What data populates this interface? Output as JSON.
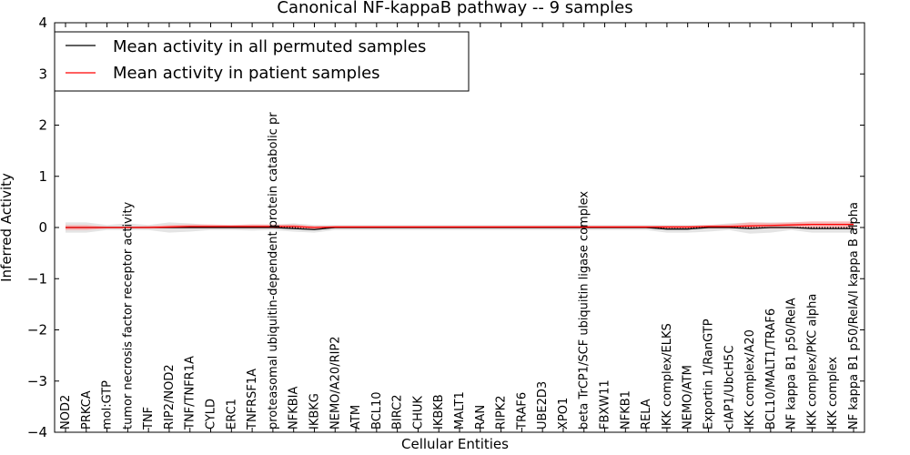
{
  "chart_data": {
    "type": "line",
    "title": "Canonical NF-kappaB pathway -- 9 samples",
    "xlabel": "Cellular Entities",
    "ylabel": "Inferred Activity",
    "ylim": [
      -4,
      4
    ],
    "yticks": [
      "−4",
      "−3",
      "−2",
      "−1",
      "0",
      "1",
      "2",
      "3",
      "4"
    ],
    "ytick_values": [
      -4,
      -3,
      -2,
      -1,
      0,
      1,
      2,
      3,
      4
    ],
    "grid": false,
    "legend_position": "top-left",
    "categories": [
      "NOD2",
      "PRKCA",
      "mol:GTP",
      "tumor necrosis factor receptor activity",
      "TNF",
      "RIP2/NOD2",
      "TNF/TNFR1A",
      "CYLD",
      "ERC1",
      "TNFRSF1A",
      "proteasomal ubiquitin-dependent protein catabolic pr",
      "NFKBIA",
      "IKBKG",
      "NEMO/A20/RIP2",
      "ATM",
      "BCL10",
      "BIRC2",
      "CHUK",
      "IKBKB",
      "MALT1",
      "RAN",
      "RIPK2",
      "TRAF6",
      "UBE2D3",
      "XPO1",
      "beta TrCP1/SCF ubiquitin ligase complex",
      "FBXW11",
      "NFKB1",
      "RELA",
      "IKK complex/ELKS",
      "NEMO/ATM",
      "Exportin 1/RanGTP",
      "cIAP1/UbcH5C",
      "IKK complex/A20",
      "BCL10/MALT1/TRAF6",
      "NF kappa B1 p50/RelA",
      "IKK complex/PKC alpha",
      "IKK complex",
      "NF kappa B1 p50/RelA/I kappa B alpha"
    ],
    "series": [
      {
        "name": "Mean activity in all permuted samples",
        "color": "#000000",
        "values": [
          0.0,
          0.0,
          0.0,
          0.0,
          0.0,
          0.0,
          0.0,
          0.0,
          0.0,
          0.0,
          0.0,
          -0.02,
          -0.04,
          0.0,
          0.0,
          0.0,
          0.0,
          0.0,
          0.0,
          0.0,
          0.0,
          0.0,
          0.0,
          0.0,
          0.0,
          0.0,
          0.0,
          0.0,
          0.0,
          -0.03,
          -0.03,
          0.0,
          0.0,
          -0.02,
          0.0,
          0.0,
          -0.02,
          -0.02,
          -0.02
        ],
        "band_lower": [
          -0.1,
          -0.1,
          -0.05,
          -0.05,
          -0.05,
          -0.1,
          -0.08,
          -0.05,
          -0.05,
          -0.06,
          -0.05,
          -0.08,
          -0.1,
          -0.05,
          -0.05,
          -0.05,
          -0.05,
          -0.05,
          -0.05,
          -0.05,
          -0.05,
          -0.05,
          -0.05,
          -0.05,
          -0.05,
          -0.05,
          -0.05,
          -0.05,
          -0.05,
          -0.1,
          -0.1,
          -0.08,
          -0.05,
          -0.12,
          -0.1,
          -0.05,
          -0.1,
          -0.1,
          -0.1
        ],
        "band_upper": [
          0.1,
          0.1,
          0.05,
          0.08,
          0.05,
          0.1,
          0.08,
          0.05,
          0.05,
          0.06,
          0.05,
          0.08,
          0.05,
          0.05,
          0.05,
          0.05,
          0.05,
          0.05,
          0.05,
          0.05,
          0.05,
          0.05,
          0.05,
          0.05,
          0.05,
          0.05,
          0.05,
          0.05,
          0.05,
          0.05,
          0.05,
          0.05,
          0.08,
          0.1,
          0.1,
          0.1,
          0.1,
          0.1,
          0.1
        ]
      },
      {
        "name": "Mean activity in patient samples",
        "color": "#ff0000",
        "values": [
          0.0,
          0.0,
          0.0,
          0.0,
          0.0,
          0.01,
          0.02,
          0.02,
          0.02,
          0.02,
          0.02,
          0.02,
          0.0,
          0.01,
          0.01,
          0.01,
          0.01,
          0.01,
          0.01,
          0.01,
          0.01,
          0.01,
          0.01,
          0.01,
          0.01,
          0.01,
          0.01,
          0.01,
          0.01,
          0.01,
          0.01,
          0.02,
          0.02,
          0.03,
          0.04,
          0.05,
          0.06,
          0.06,
          0.06
        ],
        "band_lower": [
          -0.05,
          -0.05,
          -0.02,
          -0.02,
          -0.02,
          -0.02,
          -0.02,
          -0.02,
          -0.02,
          -0.02,
          -0.02,
          -0.02,
          -0.03,
          -0.02,
          -0.02,
          -0.02,
          -0.02,
          -0.02,
          -0.02,
          -0.02,
          -0.02,
          -0.02,
          -0.02,
          -0.02,
          -0.02,
          -0.02,
          -0.02,
          -0.02,
          -0.02,
          -0.02,
          -0.02,
          -0.02,
          -0.02,
          -0.02,
          -0.02,
          -0.02,
          -0.02,
          -0.02,
          -0.02
        ],
        "band_upper": [
          0.05,
          0.05,
          0.02,
          0.02,
          0.03,
          0.05,
          0.06,
          0.06,
          0.05,
          0.06,
          0.06,
          0.06,
          0.03,
          0.03,
          0.03,
          0.03,
          0.03,
          0.03,
          0.03,
          0.03,
          0.03,
          0.03,
          0.03,
          0.03,
          0.03,
          0.03,
          0.03,
          0.03,
          0.03,
          0.03,
          0.03,
          0.05,
          0.06,
          0.1,
          0.09,
          0.1,
          0.12,
          0.12,
          0.12
        ]
      }
    ],
    "band_colors": {
      "permuted": "#d9d9d9",
      "patient": "#ff9999"
    }
  }
}
